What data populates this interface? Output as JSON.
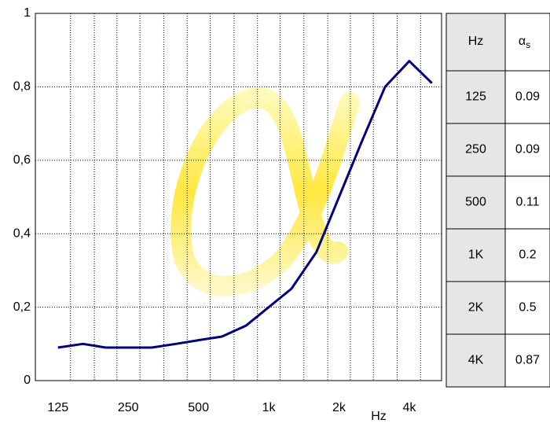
{
  "chart_data": {
    "type": "line",
    "x_label": "Hz",
    "x": [
      125,
      160,
      200,
      250,
      315,
      400,
      500,
      630,
      800,
      1000,
      1250,
      1600,
      2000,
      2500,
      3150,
      4000,
      5000
    ],
    "series": [
      {
        "color": "#000080",
        "values": [
          0.09,
          0.1,
          0.09,
          0.09,
          0.09,
          0.1,
          0.11,
          0.12,
          0.15,
          0.2,
          0.25,
          0.35,
          0.5,
          0.65,
          0.8,
          0.87,
          0.81
        ]
      }
    ],
    "xscale": "log",
    "xlim": [
      100,
      5500
    ],
    "xticks": [
      125,
      250,
      500,
      {
        "value": 1000,
        "label": "1k"
      },
      {
        "value": 2000,
        "label": "2k"
      },
      {
        "value": 4000,
        "label": "4k"
      }
    ],
    "ylim": [
      0,
      1
    ],
    "yticks": [
      0,
      {
        "value": 0.2,
        "label": "0,2"
      },
      {
        "value": 0.4,
        "label": "0,4"
      },
      {
        "value": 0.6,
        "label": "0,6"
      },
      {
        "value": 0.8,
        "label": "0,8"
      },
      1
    ],
    "grid": true
  },
  "table": {
    "header": [
      "Hz",
      {
        "symbol": "α",
        "subscript": "s"
      }
    ],
    "rows": [
      [
        "125",
        "0.09"
      ],
      [
        "250",
        "0.09"
      ],
      [
        "500",
        "0.11"
      ],
      [
        "1K",
        "0.2"
      ],
      [
        "2K",
        "0.5"
      ],
      [
        "4K",
        "0.87"
      ]
    ]
  }
}
